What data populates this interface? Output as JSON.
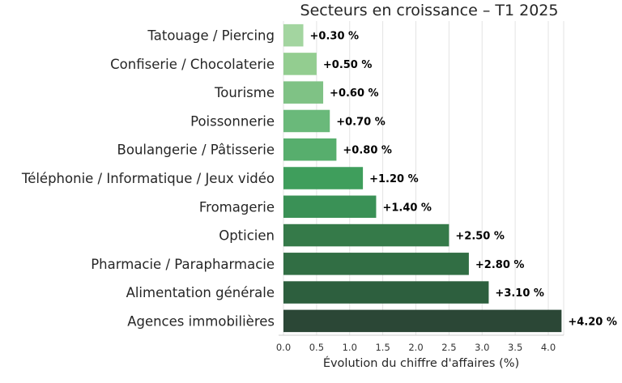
{
  "chart_data": {
    "type": "bar",
    "orientation": "horizontal",
    "title": "Secteurs en croissance – T1 2025",
    "xlabel": "Évolution du chiffre d'affaires (%)",
    "ylabel": "",
    "xlim": [
      0,
      4.2
    ],
    "xticks": [
      "0.0",
      "0.5",
      "1.0",
      "1.5",
      "2.0",
      "2.5",
      "3.0",
      "3.5",
      "4.0"
    ],
    "grid": "vertical",
    "categories": [
      "Tatouage / Piercing",
      "Confiserie / Chocolaterie",
      "Tourisme",
      "Poissonnerie",
      "Boulangerie / Pâtisserie",
      "Téléphonie / Informatique / Jeux vidéo",
      "Fromagerie",
      "Opticien",
      "Pharmacie / Parapharmacie",
      "Alimentation générale",
      "Agences immobilières"
    ],
    "values": [
      0.3,
      0.5,
      0.6,
      0.7,
      0.8,
      1.2,
      1.4,
      2.5,
      2.8,
      3.1,
      4.2
    ],
    "value_labels": [
      "+0.30 %",
      "+0.50 %",
      "+0.60 %",
      "+0.70 %",
      "+0.80 %",
      "+1.20 %",
      "+1.40 %",
      "+2.50 %",
      "+2.80 %",
      "+3.10 %",
      "+4.20 %"
    ],
    "colors": [
      "#a3d5a0",
      "#93cd90",
      "#7fc285",
      "#6ab97a",
      "#57ae6d",
      "#3f9e5c",
      "#3a9156",
      "#357a49",
      "#316e44",
      "#2d5f3e",
      "#2b4736"
    ]
  }
}
